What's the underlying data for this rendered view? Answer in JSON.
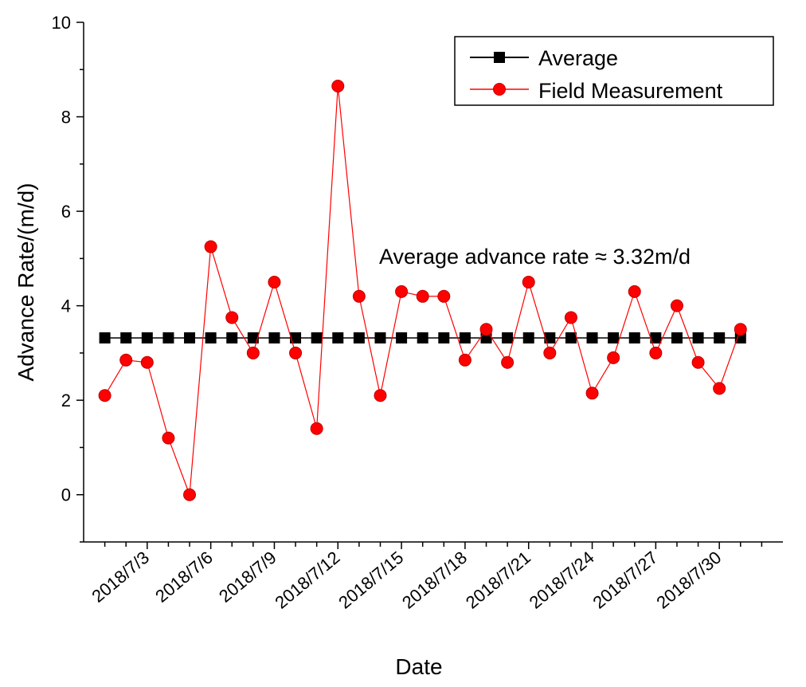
{
  "chart_data": {
    "type": "line",
    "title": "",
    "xlabel": "Date",
    "ylabel": "Advance Rate/(m/d)",
    "ylim": [
      -1,
      10
    ],
    "yticks": [
      "0",
      "2",
      "4",
      "6",
      "8",
      "10"
    ],
    "grid": false,
    "legend_position": "top-right",
    "annotation": "Average advance rate ≈ 3.32m/d",
    "x_tick_labels": [
      "2018/7/3",
      "2018/7/6",
      "2018/7/9",
      "2018/7/12",
      "2018/7/15",
      "2018/7/18",
      "2018/7/21",
      "2018/7/24",
      "2018/7/27",
      "2018/7/30"
    ],
    "x_tick_days": [
      3,
      6,
      9,
      12,
      15,
      18,
      21,
      24,
      27,
      30
    ],
    "x_range_days": [
      -0.0,
      33.0
    ],
    "series": [
      {
        "name": "Average",
        "marker": "square",
        "color": "#000000",
        "x_days": [
          1,
          2,
          3,
          4,
          5,
          6,
          7,
          8,
          9,
          10,
          11,
          12,
          13,
          14,
          15,
          16,
          17,
          18,
          19,
          20,
          21,
          22,
          23,
          24,
          25,
          26,
          27,
          28,
          29,
          30,
          31
        ],
        "values": [
          3.32,
          3.32,
          3.32,
          3.32,
          3.32,
          3.32,
          3.32,
          3.32,
          3.32,
          3.32,
          3.32,
          3.32,
          3.32,
          3.32,
          3.32,
          3.32,
          3.32,
          3.32,
          3.32,
          3.32,
          3.32,
          3.32,
          3.32,
          3.32,
          3.32,
          3.32,
          3.32,
          3.32,
          3.32,
          3.32,
          3.32
        ]
      },
      {
        "name": "Field Measurement",
        "marker": "circle",
        "color": "#ff0000",
        "x_days": [
          1,
          2,
          3,
          4,
          5,
          6,
          7,
          8,
          9,
          10,
          11,
          12,
          13,
          14,
          15,
          16,
          17,
          18,
          19,
          20,
          21,
          22,
          23,
          24,
          25,
          26,
          27,
          28,
          29,
          30,
          31
        ],
        "values": [
          2.1,
          2.85,
          2.8,
          1.2,
          0.0,
          5.25,
          3.75,
          3.0,
          4.5,
          3.0,
          1.4,
          8.65,
          4.2,
          2.1,
          4.3,
          4.2,
          4.2,
          2.85,
          3.5,
          2.8,
          4.5,
          3.0,
          3.75,
          2.15,
          2.9,
          4.3,
          3.0,
          4.0,
          2.8,
          2.25,
          3.5
        ]
      }
    ]
  }
}
